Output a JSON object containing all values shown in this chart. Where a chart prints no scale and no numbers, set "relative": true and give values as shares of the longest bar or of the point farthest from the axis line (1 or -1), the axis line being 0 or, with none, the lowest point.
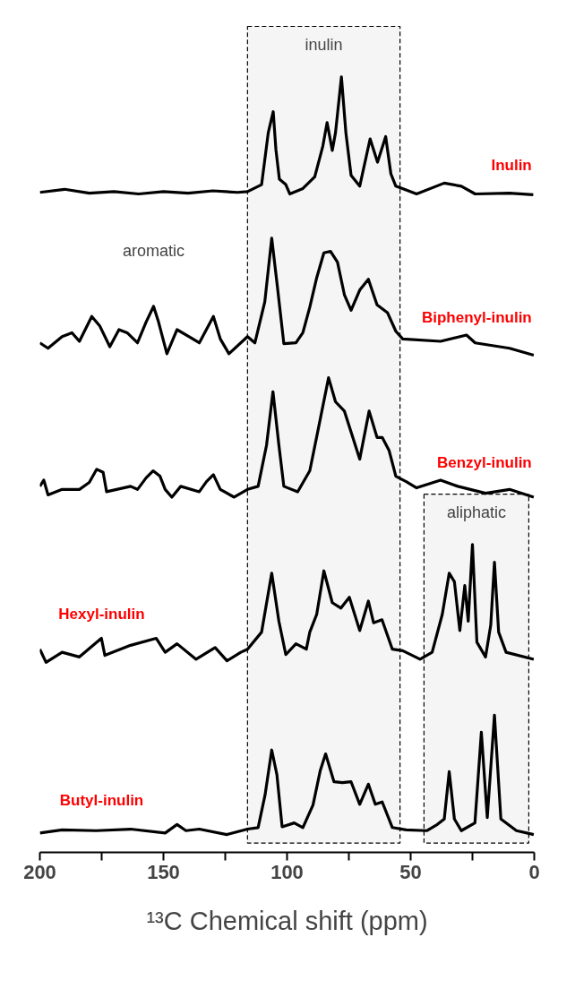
{
  "chart_data": {
    "type": "line",
    "relative": true,
    "xlabel": "¹³C Chemical shift (ppm)",
    "xlim": [
      200,
      0
    ],
    "xticks": [
      0,
      {
        "value": 25,
        "label": null
      },
      50,
      {
        "value": 75,
        "label": null
      },
      100,
      {
        "value": 125,
        "label": null
      },
      150,
      {
        "value": 175,
        "label": null
      },
      200
    ],
    "grid": false,
    "legend": false,
    "marker": "none",
    "line_style": "solid",
    "series": [
      {
        "name": "Inulin",
        "color": "#000000",
        "x": [
          200,
          190,
          180,
          170,
          160,
          150,
          140,
          130,
          120,
          116,
          110.3,
          107.6,
          105.6,
          104.5,
          103.1,
          100.5,
          98.9,
          93.6,
          88.8,
          85.5,
          83.8,
          81.7,
          80.4,
          78,
          76.2,
          74.1,
          70.6,
          66.4,
          63.4,
          60.1,
          58,
          56,
          53.3,
          47.6,
          36.4,
          29.5,
          23.9,
          10,
          0.4
        ],
        "values": [
          0.851,
          0.855,
          0.85,
          0.852,
          0.849,
          0.852,
          0.85,
          0.853,
          0.851,
          0.852,
          0.861,
          0.928,
          0.955,
          0.906,
          0.868,
          0.861,
          0.849,
          0.856,
          0.871,
          0.911,
          0.941,
          0.905,
          0.928,
          1.0,
          0.928,
          0.873,
          0.859,
          0.92,
          0.89,
          0.923,
          0.875,
          0.859,
          0.856,
          0.849,
          0.863,
          0.859,
          0.849,
          0.85,
          0.848
        ]
      },
      {
        "name": "Biphenyl-inulin",
        "color": "#000000",
        "x": [
          200,
          196.7,
          191,
          187,
          184,
          179,
          175.8,
          171.7,
          168,
          164.7,
          160.5,
          157,
          154,
          152,
          148.6,
          144.5,
          139.6,
          135.5,
          129.8,
          127,
          123.5,
          116,
          113,
          109,
          106.2,
          104,
          101.3,
          96.4,
          93.6,
          90.8,
          88,
          85.1,
          82.4,
          79.6,
          76.8,
          74.1,
          70.6,
          67.1,
          63.6,
          59.4,
          56,
          53.2,
          37.9,
          27.4,
          23.9,
          10,
          0.2
        ],
        "values": [
          0.657,
          0.65,
          0.665,
          0.67,
          0.659,
          0.691,
          0.679,
          0.652,
          0.674,
          0.67,
          0.657,
          0.684,
          0.704,
          0.684,
          0.643,
          0.674,
          0.665,
          0.657,
          0.691,
          0.662,
          0.643,
          0.665,
          0.657,
          0.71,
          0.792,
          0.732,
          0.656,
          0.657,
          0.67,
          0.703,
          0.741,
          0.773,
          0.775,
          0.761,
          0.719,
          0.699,
          0.725,
          0.739,
          0.706,
          0.696,
          0.672,
          0.662,
          0.659,
          0.667,
          0.657,
          0.65,
          0.641
        ]
      },
      {
        "name": "Benzyl-inulin",
        "color": "#000000",
        "x": [
          200,
          198.4,
          196.7,
          191,
          184,
          180,
          177,
          174.4,
          173,
          163.3,
          160.5,
          157,
          154.2,
          151.4,
          149.3,
          146.6,
          143,
          135.5,
          132.6,
          129.8,
          127,
          121.4,
          116,
          111.7,
          108.3,
          105.7,
          103.3,
          101.3,
          95.7,
          90.8,
          87.3,
          83.2,
          80.4,
          76.8,
          73.4,
          70.6,
          66.8,
          63.6,
          61.5,
          58.7,
          56,
          51.8,
          47.6,
          37.9,
          30.9,
          19.7,
          10,
          0.2
        ],
        "values": [
          0.472,
          0.48,
          0.461,
          0.468,
          0.468,
          0.477,
          0.494,
          0.49,
          0.465,
          0.472,
          0.468,
          0.483,
          0.492,
          0.485,
          0.468,
          0.458,
          0.472,
          0.465,
          0.478,
          0.487,
          0.468,
          0.458,
          0.468,
          0.472,
          0.525,
          0.594,
          0.525,
          0.472,
          0.465,
          0.492,
          0.547,
          0.612,
          0.581,
          0.569,
          0.535,
          0.507,
          0.569,
          0.535,
          0.535,
          0.518,
          0.485,
          0.478,
          0.47,
          0.48,
          0.472,
          0.463,
          0.468,
          0.458
        ]
      },
      {
        "name": "Hexyl-inulin",
        "color": "#000000",
        "x": [
          200,
          197.5,
          191,
          184,
          175.1,
          173.7,
          163.3,
          152.9,
          149.3,
          144.5,
          136.8,
          129.1,
          124.3,
          118.7,
          116,
          110.3,
          106.2,
          103.3,
          100.5,
          96.4,
          92.2,
          90.8,
          88,
          85.1,
          81.7,
          78.2,
          74.8,
          70.6,
          67.1,
          65,
          61.6,
          57.4,
          53.2,
          46.2,
          41.3,
          37.2,
          34.4,
          32.3,
          30.1,
          28.1,
          26.7,
          25,
          23.2,
          19.7,
          17.6,
          16.1,
          14.4,
          11.4,
          0.2
        ],
        "values": [
          0.262,
          0.245,
          0.258,
          0.252,
          0.276,
          0.254,
          0.267,
          0.276,
          0.258,
          0.269,
          0.249,
          0.264,
          0.247,
          0.258,
          0.262,
          0.284,
          0.36,
          0.298,
          0.255,
          0.269,
          0.262,
          0.284,
          0.307,
          0.363,
          0.322,
          0.315,
          0.329,
          0.286,
          0.324,
          0.296,
          0.3,
          0.262,
          0.26,
          0.249,
          0.258,
          0.307,
          0.36,
          0.349,
          0.286,
          0.344,
          0.298,
          0.397,
          0.271,
          0.252,
          0.293,
          0.374,
          0.284,
          0.258,
          0.249
        ]
      },
      {
        "name": "Butyl-inulin",
        "color": "#000000",
        "x": [
          200,
          191,
          177.2,
          163.3,
          149.3,
          144.5,
          140.9,
          135.5,
          124.4,
          116,
          111.7,
          108.9,
          106.2,
          104.1,
          102,
          97.1,
          93.6,
          89.5,
          86.6,
          84.4,
          81,
          77.6,
          74.1,
          70.6,
          67.1,
          64.3,
          61.5,
          57.4,
          51.8,
          43.5,
          39.2,
          36.4,
          34.4,
          32.3,
          29.5,
          24,
          21.4,
          19,
          16.1,
          13.5,
          7.2,
          0.2
        ],
        "values": [
          0.025,
          0.029,
          0.028,
          0.03,
          0.025,
          0.036,
          0.028,
          0.03,
          0.023,
          0.03,
          0.032,
          0.074,
          0.132,
          0.1,
          0.033,
          0.038,
          0.032,
          0.061,
          0.105,
          0.127,
          0.091,
          0.09,
          0.091,
          0.062,
          0.088,
          0.062,
          0.065,
          0.032,
          0.029,
          0.028,
          0.036,
          0.043,
          0.104,
          0.043,
          0.028,
          0.038,
          0.155,
          0.045,
          0.177,
          0.043,
          0.028,
          0.023
        ]
      }
    ],
    "bands": [
      {
        "axis": "x",
        "from": 116,
        "to": 54.3,
        "label": "inulin",
        "color": "#000000"
      },
      {
        "axis": "x",
        "from": 44.6,
        "to": 2.2,
        "label": "aliphatic",
        "color": "#000000"
      }
    ],
    "annotations": [
      "aromatic"
    ]
  }
}
